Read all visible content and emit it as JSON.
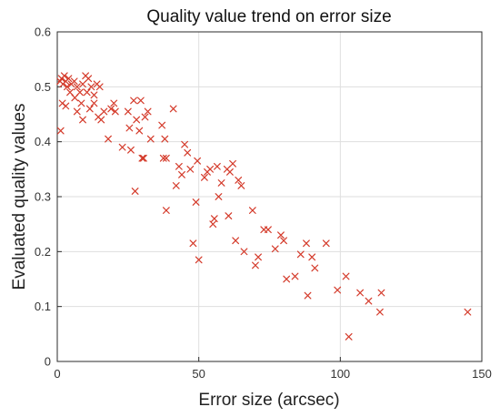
{
  "chart_data": {
    "type": "scatter",
    "title": "Quality value trend on error size",
    "xlabel": "Error size (arcsec)",
    "ylabel": "Evaluated quality values",
    "xlim": [
      0,
      150
    ],
    "ylim": [
      0,
      0.6
    ],
    "xticks": [
      0,
      50,
      100,
      150
    ],
    "yticks": [
      0,
      0.1,
      0.2,
      0.3,
      0.4,
      0.5,
      0.6
    ],
    "grid": true,
    "legend": "none",
    "marker": "x",
    "marker_color": "#d43a2a",
    "series": [
      {
        "points": [
          [
            1,
            0.51
          ],
          [
            1.5,
            0.515
          ],
          [
            2,
            0.505
          ],
          [
            2.5,
            0.52
          ],
          [
            3,
            0.51
          ],
          [
            3.5,
            0.5
          ],
          [
            4,
            0.515
          ],
          [
            5,
            0.505
          ],
          [
            6,
            0.51
          ],
          [
            7,
            0.5
          ],
          [
            8,
            0.49
          ],
          [
            9,
            0.505
          ],
          [
            10,
            0.52
          ],
          [
            11,
            0.515
          ],
          [
            12,
            0.5
          ],
          [
            13,
            0.485
          ],
          [
            14,
            0.505
          ],
          [
            15,
            0.5
          ],
          [
            1.2,
            0.42
          ],
          [
            1.8,
            0.47
          ],
          [
            3,
            0.465
          ],
          [
            4.5,
            0.49
          ],
          [
            6.2,
            0.48
          ],
          [
            7,
            0.455
          ],
          [
            8.5,
            0.47
          ],
          [
            9,
            0.44
          ],
          [
            10.5,
            0.49
          ],
          [
            11.5,
            0.46
          ],
          [
            13,
            0.47
          ],
          [
            14.5,
            0.445
          ],
          [
            15.5,
            0.44
          ],
          [
            16.5,
            0.455
          ],
          [
            18,
            0.405
          ],
          [
            19,
            0.46
          ],
          [
            20,
            0.47
          ],
          [
            20.5,
            0.455
          ],
          [
            23,
            0.39
          ],
          [
            25,
            0.455
          ],
          [
            25.5,
            0.425
          ],
          [
            26,
            0.385
          ],
          [
            27,
            0.475
          ],
          [
            27.5,
            0.31
          ],
          [
            28,
            0.44
          ],
          [
            29,
            0.42
          ],
          [
            29.5,
            0.475
          ],
          [
            30,
            0.37
          ],
          [
            30.5,
            0.37
          ],
          [
            31,
            0.445
          ],
          [
            32,
            0.455
          ],
          [
            33,
            0.405
          ],
          [
            37,
            0.43
          ],
          [
            37.5,
            0.37
          ],
          [
            38,
            0.405
          ],
          [
            38.5,
            0.37
          ],
          [
            38.5,
            0.275
          ],
          [
            41,
            0.46
          ],
          [
            42,
            0.32
          ],
          [
            43,
            0.355
          ],
          [
            44,
            0.34
          ],
          [
            45,
            0.395
          ],
          [
            46,
            0.38
          ],
          [
            47,
            0.35
          ],
          [
            48,
            0.215
          ],
          [
            49,
            0.29
          ],
          [
            49.5,
            0.365
          ],
          [
            50,
            0.185
          ],
          [
            52,
            0.335
          ],
          [
            53,
            0.345
          ],
          [
            54,
            0.35
          ],
          [
            55,
            0.25
          ],
          [
            55.5,
            0.26
          ],
          [
            56.5,
            0.355
          ],
          [
            57,
            0.3
          ],
          [
            58,
            0.325
          ],
          [
            60,
            0.35
          ],
          [
            60.5,
            0.265
          ],
          [
            61,
            0.345
          ],
          [
            62,
            0.36
          ],
          [
            63,
            0.22
          ],
          [
            64,
            0.33
          ],
          [
            65,
            0.32
          ],
          [
            66,
            0.2
          ],
          [
            69,
            0.275
          ],
          [
            70,
            0.175
          ],
          [
            71,
            0.19
          ],
          [
            73,
            0.24
          ],
          [
            74.5,
            0.24
          ],
          [
            77,
            0.205
          ],
          [
            79,
            0.23
          ],
          [
            80,
            0.22
          ],
          [
            81,
            0.15
          ],
          [
            84,
            0.155
          ],
          [
            86,
            0.195
          ],
          [
            88,
            0.215
          ],
          [
            88.5,
            0.12
          ],
          [
            90,
            0.19
          ],
          [
            91,
            0.17
          ],
          [
            95,
            0.215
          ],
          [
            99,
            0.13
          ],
          [
            102,
            0.155
          ],
          [
            103,
            0.045
          ],
          [
            107,
            0.125
          ],
          [
            110,
            0.11
          ],
          [
            114,
            0.09
          ],
          [
            114.5,
            0.125
          ],
          [
            145,
            0.09
          ]
        ]
      }
    ]
  }
}
